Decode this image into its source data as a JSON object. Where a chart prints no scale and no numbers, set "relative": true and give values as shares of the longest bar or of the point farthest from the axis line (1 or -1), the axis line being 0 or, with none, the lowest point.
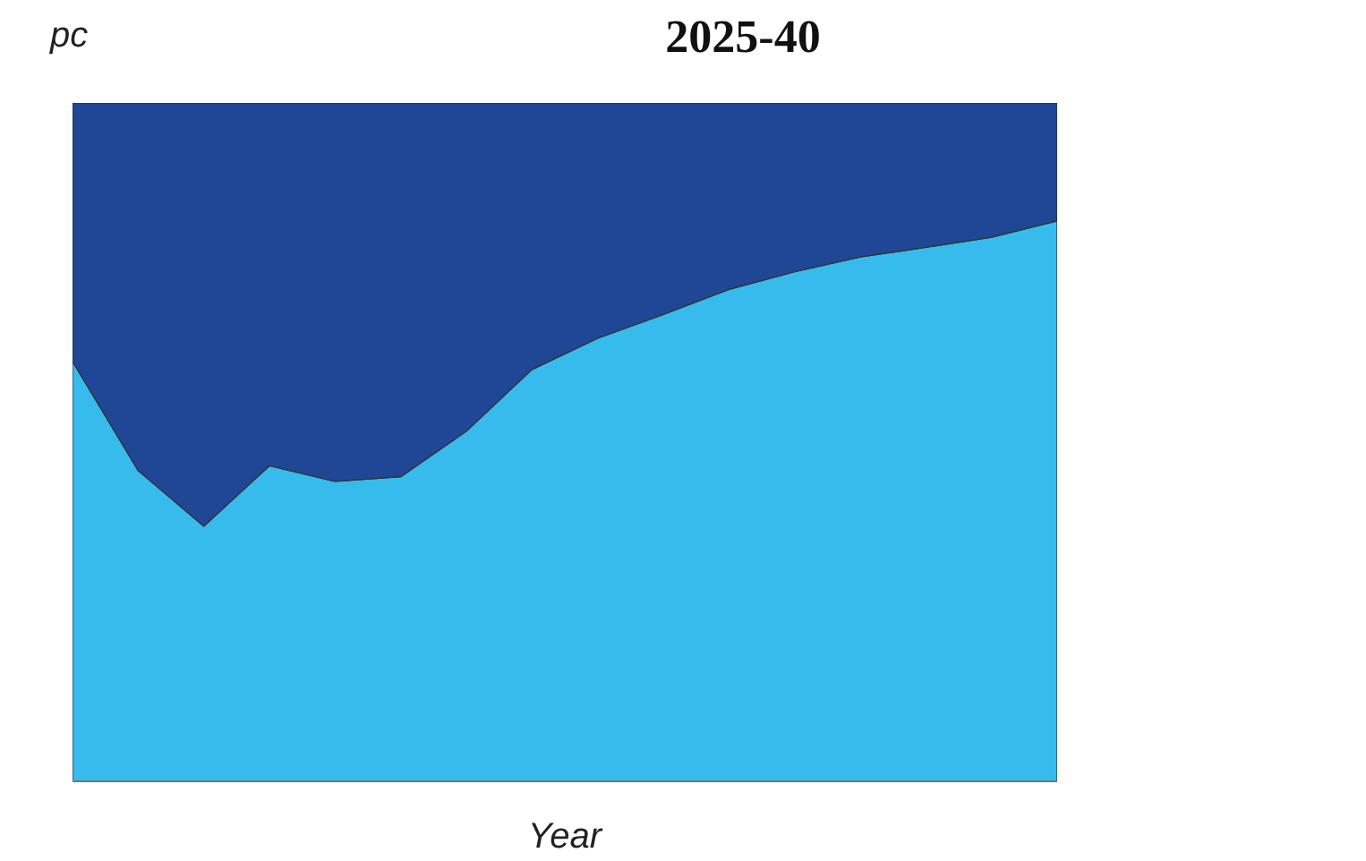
{
  "chart_data": {
    "type": "area",
    "title": "2025-40",
    "xlabel": "Year",
    "ylabel": "pc",
    "relative": true,
    "stacked": true,
    "categories": [
      null,
      null,
      null,
      null,
      null,
      null,
      null,
      null,
      null,
      null,
      null,
      null,
      null,
      null,
      null,
      null
    ],
    "series": [
      {
        "color": "#36bbec",
        "values": [
          0.619,
          0.458,
          0.376,
          0.465,
          0.442,
          0.449,
          0.516,
          0.607,
          0.653,
          0.688,
          0.725,
          0.751,
          0.773,
          0.787,
          0.802,
          0.826
        ]
      },
      {
        "color": "#1f4795",
        "values": [
          0.381,
          0.542,
          0.624,
          0.535,
          0.558,
          0.551,
          0.484,
          0.393,
          0.347,
          0.312,
          0.275,
          0.249,
          0.227,
          0.213,
          0.198,
          0.174
        ]
      }
    ],
    "line_style": "solid"
  }
}
